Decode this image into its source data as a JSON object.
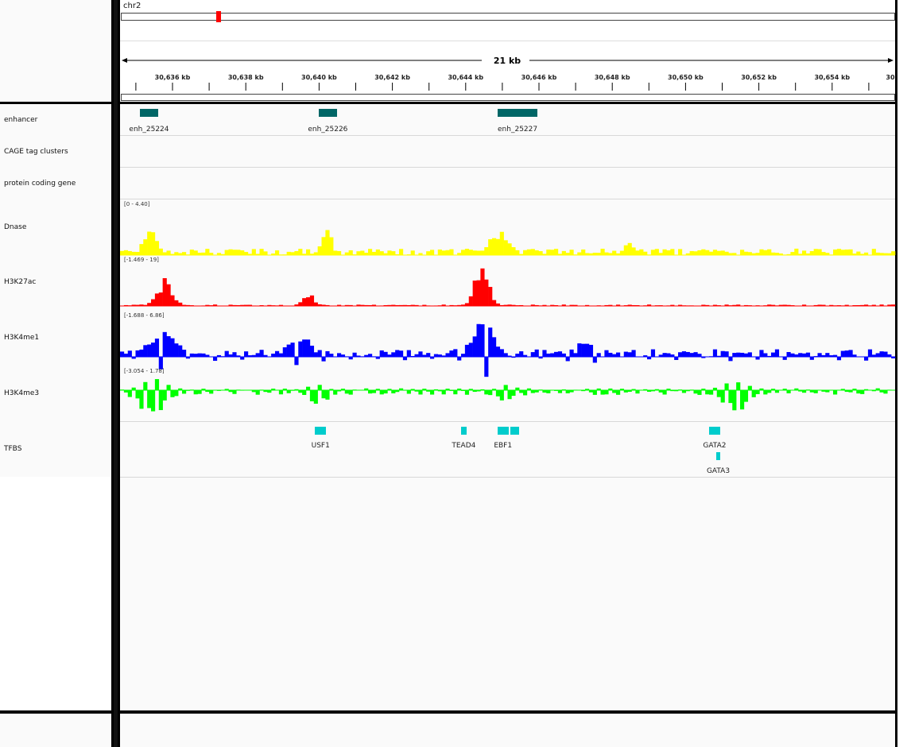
{
  "chromosome": "chr2",
  "span_label": "21 kb",
  "ruler_ticks": [
    "30,636 kb",
    "30,638 kb",
    "30,640 kb",
    "30,642 kb",
    "30,644 kb",
    "30,646 kb",
    "30,648 kb",
    "30,650 kb",
    "30,652 kb",
    "30,654 kb",
    "30"
  ],
  "tracks": {
    "enhancer": {
      "label": "enhancer",
      "color": "#006666",
      "features": [
        {
          "name": "enh_25224",
          "start_kb": 30635.2,
          "end_kb": 30635.7
        },
        {
          "name": "enh_25226",
          "start_kb": 30640.1,
          "end_kb": 30640.6
        },
        {
          "name": "enh_25227",
          "start_kb": 30645.0,
          "end_kb": 30646.1
        }
      ]
    },
    "cage": {
      "label": "CAGE tag clusters"
    },
    "protein": {
      "label": "protein coding gene"
    },
    "dnase": {
      "label": "Dnase",
      "range": "[0 - 4.40]",
      "color": "#ffff00"
    },
    "h3k27ac": {
      "label": "H3K27ac",
      "range": "[-1.469 - 19]",
      "color": "#ff0000"
    },
    "h3k4me1": {
      "label": "H3K4me1",
      "range": "[-1.688 - 6.86]",
      "color": "#0000ff"
    },
    "h3k4me3": {
      "label": "H3K4me3",
      "range": "[-3.054 - 1.78]",
      "color": "#00ff00"
    },
    "tfbs": {
      "label": "TFBS",
      "color": "#00cccc",
      "features": [
        {
          "name": "USF1",
          "start_kb": 30640.0,
          "end_kb": 30640.3,
          "row": 0
        },
        {
          "name": "TEAD4",
          "start_kb": 30644.0,
          "end_kb": 30644.15,
          "row": 0
        },
        {
          "name": "EBF1",
          "start_kb": 30645.0,
          "end_kb": 30645.3,
          "row": 0
        },
        {
          "name": "",
          "start_kb": 30645.35,
          "end_kb": 30645.6,
          "row": 0
        },
        {
          "name": "GATA2",
          "start_kb": 30650.8,
          "end_kb": 30651.1,
          "row": 0
        },
        {
          "name": "GATA3",
          "start_kb": 30651.0,
          "end_kb": 30651.1,
          "row": 1
        }
      ]
    }
  }
}
